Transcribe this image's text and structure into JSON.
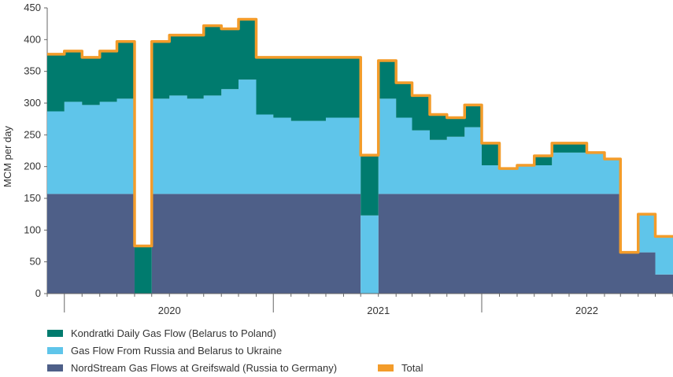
{
  "chart_data": {
    "type": "area",
    "stacked": true,
    "ylabel": "MCM per day",
    "ylim": [
      0,
      450
    ],
    "yticks": [
      0,
      50,
      100,
      150,
      200,
      250,
      300,
      350,
      400,
      450
    ],
    "xlim": [
      "2019-06-01",
      "2022-06-01"
    ],
    "xticks": [
      {
        "label": "2020",
        "date": "2020-01-01"
      },
      {
        "label": "2021",
        "date": "2021-01-01"
      },
      {
        "label": "2022",
        "date": "2022-01-01"
      }
    ],
    "grid": false,
    "legend_position": "bottom-left",
    "x": [
      "2019-06",
      "2019-07",
      "2019-08",
      "2019-09",
      "2019-10",
      "2019-11",
      "2019-12",
      "2020-01",
      "2020-02",
      "2020-03",
      "2020-04",
      "2020-05",
      "2020-06",
      "2020-07",
      "2020-08",
      "2020-09",
      "2020-10",
      "2020-11",
      "2020-12",
      "2021-01",
      "2021-02",
      "2021-03",
      "2021-04",
      "2021-05",
      "2021-06",
      "2021-07",
      "2021-08",
      "2021-09",
      "2021-10",
      "2021-11",
      "2021-12",
      "2022-01",
      "2022-02",
      "2022-03",
      "2022-04",
      "2022-05"
    ],
    "series": [
      {
        "name": "NordStream Gas Flows at Greifswald (Russia to Germany)",
        "color": "#4e5f88",
        "values": [
          157,
          157,
          157,
          157,
          157,
          0,
          157,
          157,
          157,
          157,
          157,
          157,
          157,
          157,
          157,
          157,
          157,
          157,
          0,
          157,
          157,
          157,
          157,
          157,
          157,
          157,
          157,
          157,
          157,
          157,
          157,
          157,
          157,
          65,
          65,
          30
        ]
      },
      {
        "name": "Gas Flow From Russia and Belarus to Ukraine",
        "color": "#5fc5ea",
        "values": [
          130,
          145,
          140,
          145,
          150,
          0,
          150,
          155,
          150,
          155,
          165,
          180,
          125,
          120,
          115,
          115,
          120,
          120,
          123,
          150,
          120,
          100,
          85,
          90,
          105,
          45,
          40,
          45,
          45,
          65,
          65,
          65,
          55,
          0,
          60,
          60
        ]
      },
      {
        "name": "Kondratki Daily Gas Flow (Belarus to Poland)",
        "color": "#007b6e",
        "values": [
          90,
          80,
          75,
          80,
          90,
          75,
          90,
          95,
          100,
          110,
          95,
          95,
          90,
          95,
          100,
          100,
          95,
          95,
          95,
          60,
          55,
          55,
          40,
          30,
          35,
          35,
          0,
          0,
          15,
          15,
          15,
          0,
          0,
          0,
          0,
          0
        ]
      },
      {
        "name": "Total",
        "color": "#f39c2a",
        "type": "line",
        "values": [
          377,
          382,
          372,
          382,
          397,
          75,
          397,
          407,
          407,
          422,
          417,
          432,
          372,
          372,
          372,
          372,
          372,
          372,
          218,
          367,
          332,
          312,
          282,
          277,
          297,
          237,
          197,
          202,
          217,
          237,
          237,
          222,
          212,
          65,
          125,
          90
        ]
      }
    ]
  }
}
